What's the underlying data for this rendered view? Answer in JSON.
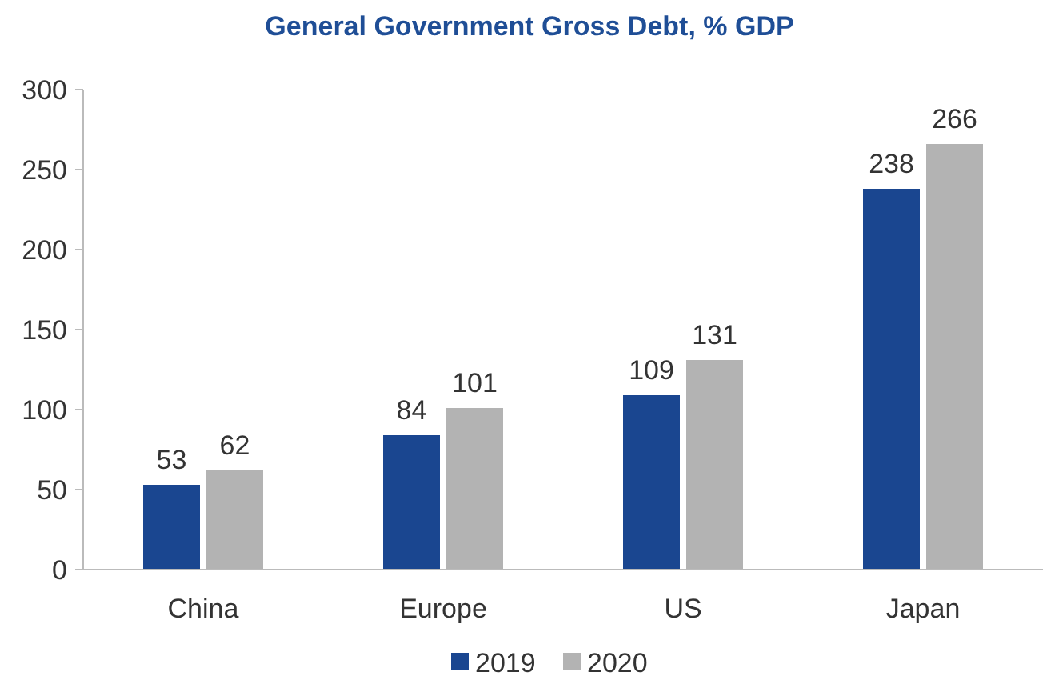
{
  "chart_data": {
    "type": "bar",
    "title": "General Government Gross Debt, % GDP",
    "categories": [
      "China",
      "Europe",
      "US",
      "Japan"
    ],
    "series": [
      {
        "name": "2019",
        "color": "#1a4690",
        "values": [
          53,
          84,
          109,
          238
        ]
      },
      {
        "name": "2020",
        "color": "#b3b3b3",
        "values": [
          62,
          101,
          131,
          266
        ]
      }
    ],
    "ylim": [
      0,
      300
    ],
    "yticks": [
      0,
      50,
      100,
      150,
      200,
      250,
      300
    ],
    "grid": false,
    "legend": "bottom",
    "data_labels": true
  }
}
